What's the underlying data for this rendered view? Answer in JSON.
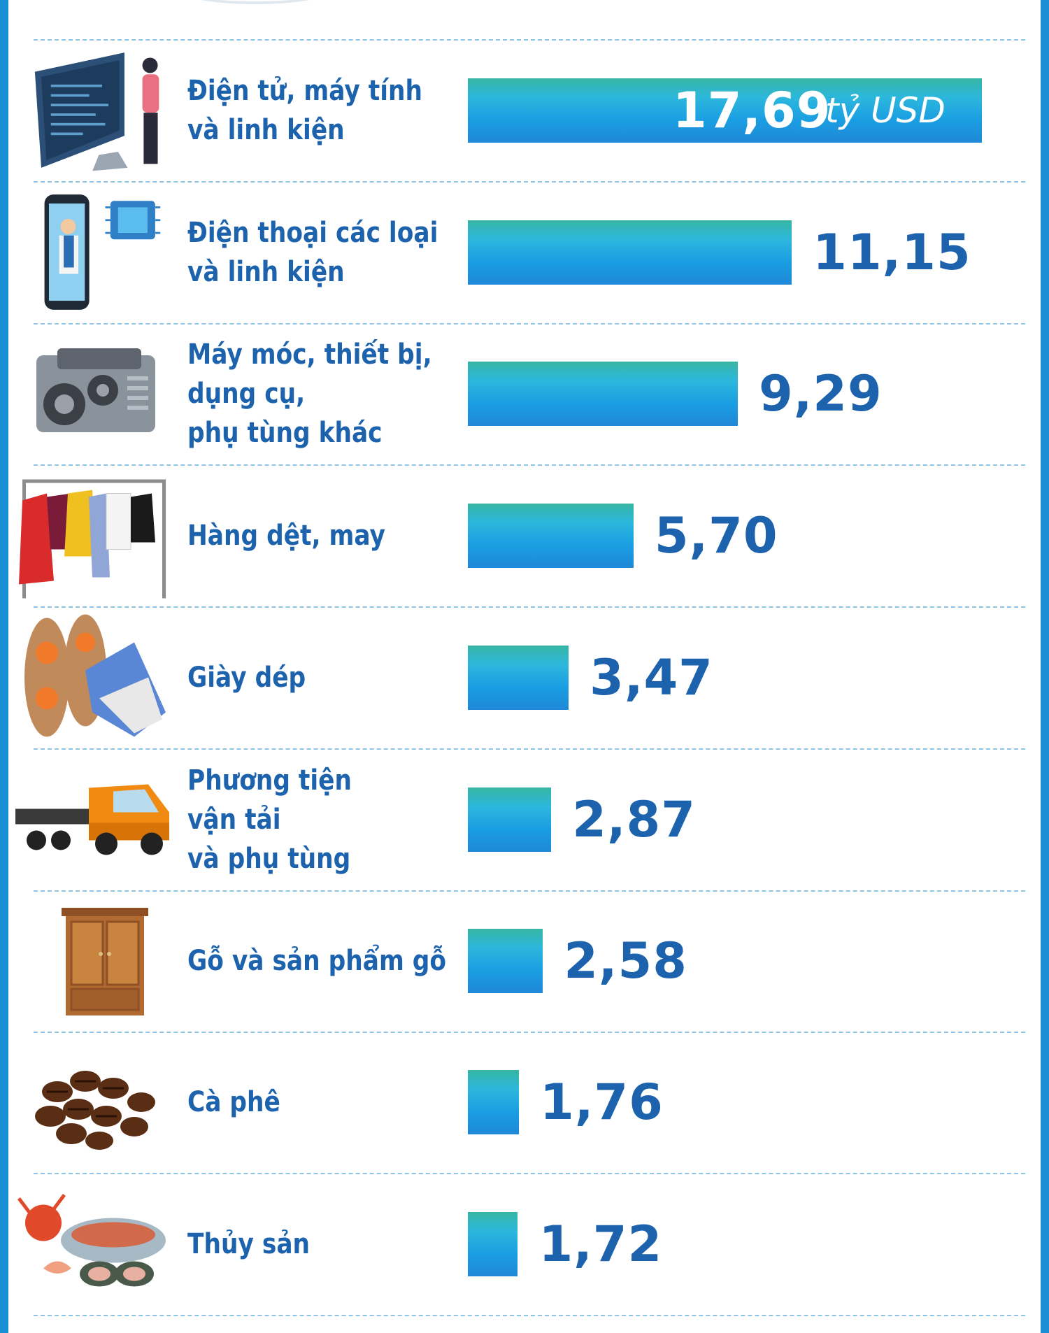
{
  "chart_data": {
    "type": "bar",
    "orientation": "horizontal",
    "unit": "tỷ USD",
    "categories": [
      [
        "Điện tử, máy tính",
        "và linh kiện"
      ],
      [
        "Điện thoại các loại",
        "và linh kiện"
      ],
      [
        "Máy móc, thiết bị,",
        "dụng cụ,",
        "phụ tùng khác"
      ],
      [
        "Hàng dệt, may"
      ],
      [
        "Giày dép"
      ],
      [
        "Phương tiện",
        "vận tải",
        "và phụ tùng"
      ],
      [
        "Gỗ và sản phẩm gỗ"
      ],
      [
        "Cà phê"
      ],
      [
        "Thủy sản"
      ]
    ],
    "values": [
      17.69,
      11.15,
      9.29,
      5.7,
      3.47,
      2.87,
      2.58,
      1.76,
      1.72
    ],
    "value_labels": [
      "17,69",
      "11,15",
      "9,29",
      "5,70",
      "3,47",
      "2,87",
      "2,58",
      "1,76",
      "1,72"
    ],
    "icons": [
      "computer-monitor-icon",
      "smartphone-chip-icon",
      "engine-icon",
      "clothes-rack-icon",
      "shoes-icon",
      "truck-icon",
      "wardrobe-icon",
      "coffee-beans-icon",
      "seafood-icon"
    ],
    "colors": {
      "bar_top": "#37b6a3",
      "bar_mid": "#2cb7dd",
      "bar_bottom": "#1f88d8",
      "text": "#1c62ad",
      "frame": "#1b8fd6"
    }
  }
}
